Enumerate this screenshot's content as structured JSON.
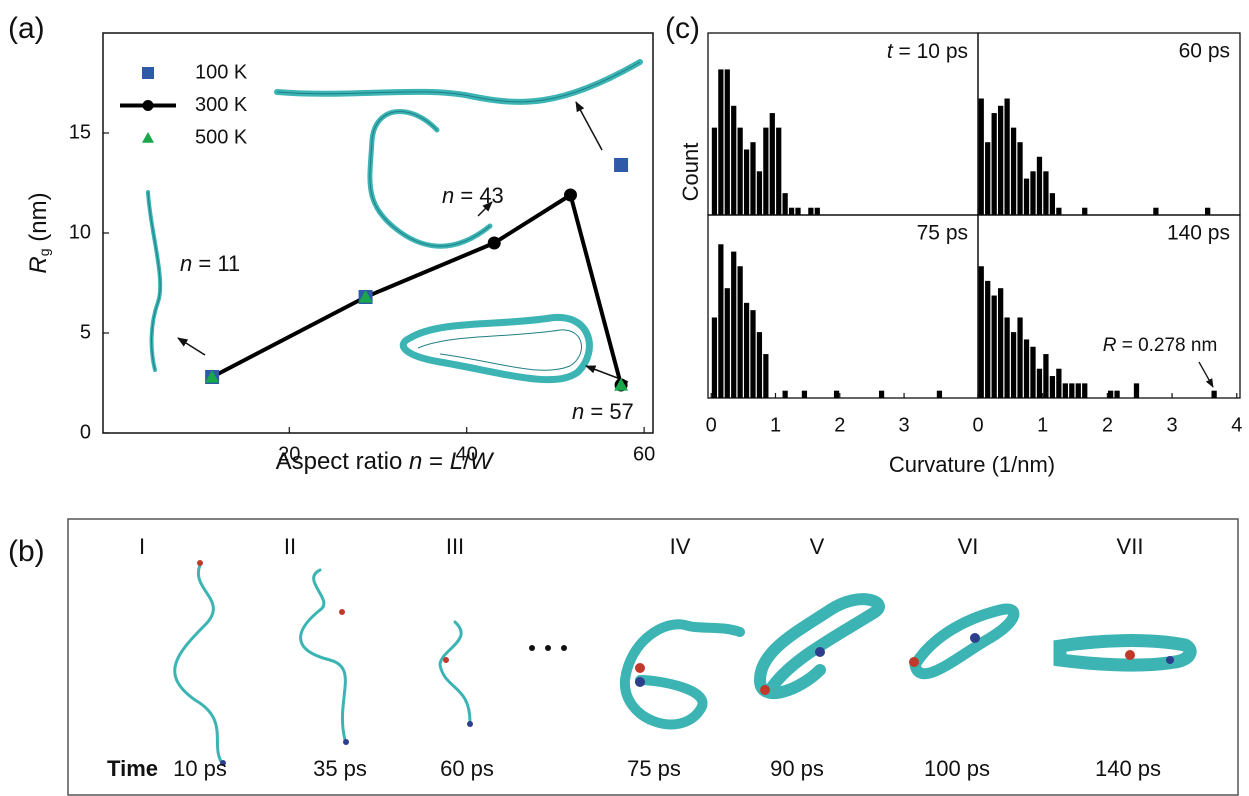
{
  "panel_labels": [
    "(a)",
    "(b)",
    "(c)"
  ],
  "chart_data": [
    {
      "type": "line",
      "xlabel": [
        "Aspect ratio ",
        "n",
        " = ",
        "L",
        "/",
        "W"
      ],
      "ylabel": [
        "R",
        "g",
        " (nm)"
      ],
      "xlim": [
        -1,
        61
      ],
      "ylim": [
        0,
        20
      ],
      "xticks": [
        20,
        40,
        60
      ],
      "yticks": [
        0,
        5,
        10,
        15
      ],
      "legend": "upper left",
      "series": [
        {
          "name": "100 K",
          "color": "#2e5aa8",
          "marker": "square",
          "line": false,
          "x": [
            11.3,
            28.6,
            57.4
          ],
          "values": [
            2.8,
            6.8,
            13.4
          ]
        },
        {
          "name": "300 K",
          "color": "#000000",
          "marker": "circle",
          "line": true,
          "x": [
            11.3,
            28.6,
            43.1,
            51.7,
            57.4
          ],
          "values": [
            2.8,
            6.8,
            9.5,
            11.9,
            2.4
          ]
        },
        {
          "name": "500 K",
          "color": "#1aa64b",
          "marker": "triangle",
          "line": false,
          "x": [
            11.3,
            28.6,
            57.4
          ],
          "values": [
            2.8,
            6.8,
            2.4
          ]
        }
      ],
      "annotations": [
        [
          "n",
          " = 11"
        ],
        [
          "n",
          " = 43"
        ],
        [
          "n",
          " = 57"
        ]
      ]
    },
    {
      "type": "histogram",
      "ylabel": "Count",
      "xlabel": "Curvature (1/nm)",
      "ylim": [
        0,
        25
      ],
      "color": "#000000",
      "annotation": [
        "R",
        " = 0.278 nm"
      ],
      "panels": [
        {
          "label": [
            "t",
            " = 10 ps"
          ],
          "xlim": [
            -0.05,
            4.15
          ],
          "bins": [
            0,
            0.1,
            0.2,
            0.3,
            0.4,
            0.5,
            0.6,
            0.7,
            0.8,
            0.9,
            1.0,
            1.1,
            1.2,
            1.3,
            1.4,
            1.5,
            1.6,
            1.7
          ],
          "values": [
            12,
            20,
            20,
            15,
            12,
            9,
            10,
            6,
            12,
            14,
            12,
            3,
            1,
            1,
            0,
            1,
            1
          ]
        },
        {
          "label": "60 ps",
          "xlim": [
            0,
            4.05
          ],
          "bins": [
            0,
            0.1,
            0.2,
            0.3,
            0.4,
            0.5,
            0.6,
            0.7,
            0.8,
            0.9,
            1.0,
            1.1,
            1.2,
            1.3,
            1.4,
            1.5,
            1.6,
            1.7,
            1.8,
            1.9,
            2.0,
            2.1,
            2.2,
            2.3,
            2.4,
            2.5,
            2.6,
            2.7,
            2.8,
            2.9,
            3.0,
            3.1,
            3.2,
            3.3,
            3.4,
            3.5,
            3.6
          ],
          "values": [
            16,
            10,
            14,
            15,
            16,
            12,
            10,
            5,
            6,
            8,
            6,
            3,
            1,
            0,
            0,
            0,
            1,
            0,
            0,
            0,
            0,
            0,
            0,
            0,
            0,
            0,
            0,
            1,
            0,
            0,
            0,
            0,
            0,
            0,
            0,
            1
          ]
        },
        {
          "label": "75 ps",
          "xlim": [
            -0.05,
            4.15
          ],
          "xticks": [
            0,
            1,
            2,
            3
          ],
          "bins": [
            0,
            0.1,
            0.2,
            0.3,
            0.4,
            0.5,
            0.6,
            0.7,
            0.8,
            0.9,
            1.0,
            1.1,
            1.2,
            1.3,
            1.4,
            1.5,
            1.6,
            1.7,
            1.8,
            1.9,
            2.0,
            2.1,
            2.2,
            2.3,
            2.4,
            2.5,
            2.6,
            2.7,
            2.8,
            2.9,
            3.0,
            3.1,
            3.2,
            3.3,
            3.4,
            3.5,
            3.6
          ],
          "values": [
            11,
            21,
            15,
            20,
            18,
            13,
            12,
            9,
            6,
            0,
            0,
            1,
            0,
            0,
            1,
            0,
            0,
            0,
            0,
            1,
            0,
            0,
            0,
            0,
            0,
            0,
            1,
            0,
            0,
            0,
            0,
            0,
            0,
            0,
            0,
            1
          ]
        },
        {
          "label": "140 ps",
          "xlim": [
            0,
            4.05
          ],
          "xticks": [
            0,
            1,
            2,
            3,
            4
          ],
          "bins": [
            0,
            0.1,
            0.2,
            0.3,
            0.4,
            0.5,
            0.6,
            0.7,
            0.8,
            0.9,
            1.0,
            1.1,
            1.2,
            1.3,
            1.4,
            1.5,
            1.6,
            1.7,
            1.8,
            1.9,
            2.0,
            2.1,
            2.2,
            2.3,
            2.4,
            2.5,
            2.6,
            2.7,
            2.8,
            2.9,
            3.0,
            3.1,
            3.2,
            3.3,
            3.4,
            3.5,
            3.6,
            3.7
          ],
          "values": [
            18,
            16,
            14,
            15,
            11,
            9,
            11,
            8,
            7,
            4,
            6,
            3,
            4,
            2,
            2,
            2,
            2,
            0,
            0,
            0,
            1,
            1,
            0,
            0,
            2,
            0,
            0,
            0,
            0,
            0,
            0,
            0,
            0,
            0,
            0,
            0,
            1
          ]
        }
      ]
    }
  ],
  "panel_b": {
    "stages": [
      "I",
      "II",
      "III",
      "IV",
      "V",
      "VI",
      "VII"
    ],
    "time_label": "Time",
    "times": [
      "10 ps",
      "35 ps",
      "60 ps",
      "75 ps",
      "90 ps",
      "100 ps",
      "140 ps"
    ]
  }
}
